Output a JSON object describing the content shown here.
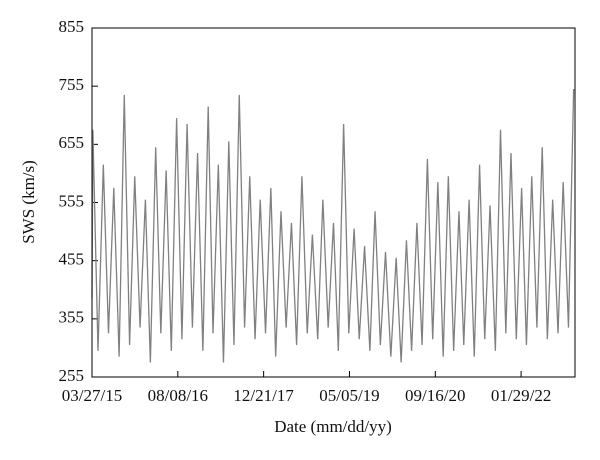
{
  "chart_data": {
    "type": "line",
    "x_label": "Date (mm/dd/yy)",
    "y_label": "SWS (km/s)",
    "x": [
      "03/27/15",
      "04/01/15",
      "05/01/15",
      "06/01/15",
      "07/01/15",
      "08/01/15",
      "09/01/15",
      "10/01/15",
      "11/01/15",
      "12/01/15",
      "01/01/16",
      "02/01/16",
      "03/01/16",
      "04/01/16",
      "05/01/16",
      "06/01/16",
      "07/01/16",
      "08/01/16",
      "09/01/16",
      "10/01/16",
      "11/01/16",
      "12/01/16",
      "01/01/17",
      "02/01/17",
      "03/01/17",
      "04/01/17",
      "05/01/17",
      "06/01/17",
      "07/01/17",
      "08/01/17",
      "09/01/17",
      "10/01/17",
      "11/01/17",
      "12/01/17",
      "01/01/18",
      "02/01/18",
      "03/01/18",
      "04/01/18",
      "05/01/18",
      "06/01/18",
      "07/01/18",
      "08/01/18",
      "09/01/18",
      "10/01/18",
      "11/01/18",
      "12/01/18",
      "01/01/19",
      "02/01/19",
      "03/01/19",
      "04/01/19",
      "05/01/19",
      "06/01/19",
      "07/01/19",
      "08/01/19",
      "09/01/19",
      "10/01/19",
      "11/01/19",
      "12/01/19",
      "01/01/20",
      "02/01/20",
      "03/01/20",
      "04/01/20",
      "05/01/20",
      "06/01/20",
      "07/01/20",
      "08/01/20",
      "09/01/20",
      "10/01/20",
      "11/01/20",
      "12/01/20",
      "01/01/21",
      "02/01/21",
      "03/01/21",
      "04/01/21",
      "05/01/21",
      "06/01/21",
      "07/01/21",
      "08/01/21",
      "09/01/21",
      "10/01/21",
      "11/01/21",
      "12/01/21",
      "01/01/22",
      "02/01/22",
      "03/01/22",
      "04/01/22",
      "05/01/22",
      "06/01/22",
      "07/01/22",
      "08/01/22",
      "09/01/22",
      "10/01/22",
      "11/01/22",
      "12/01/22"
    ],
    "series": [
      {
        "name": "SWS",
        "color": "#808080",
        "values": [
          390,
          680,
          300,
          620,
          330,
          580,
          290,
          740,
          310,
          600,
          340,
          560,
          280,
          650,
          330,
          610,
          300,
          700,
          320,
          690,
          340,
          640,
          300,
          720,
          330,
          620,
          280,
          660,
          310,
          740,
          340,
          600,
          320,
          560,
          330,
          580,
          290,
          540,
          340,
          520,
          310,
          600,
          330,
          500,
          320,
          560,
          340,
          520,
          300,
          690,
          330,
          510,
          320,
          480,
          300,
          540,
          310,
          470,
          290,
          460,
          280,
          490,
          300,
          520,
          310,
          630,
          320,
          590,
          290,
          600,
          300,
          540,
          310,
          560,
          290,
          620,
          320,
          550,
          300,
          680,
          330,
          640,
          320,
          580,
          310,
          600,
          340,
          650,
          320,
          560,
          330,
          590,
          340,
          750
        ]
      }
    ],
    "xlim": [
      "03/27/15",
      "12/09/22"
    ],
    "xticks": [
      "03/27/15",
      "08/08/16",
      "12/21/17",
      "05/05/19",
      "09/16/20",
      "01/29/22"
    ],
    "ylim": [
      255,
      855
    ],
    "yticks": [
      255,
      355,
      455,
      555,
      655,
      755,
      855
    ],
    "grid": false
  }
}
